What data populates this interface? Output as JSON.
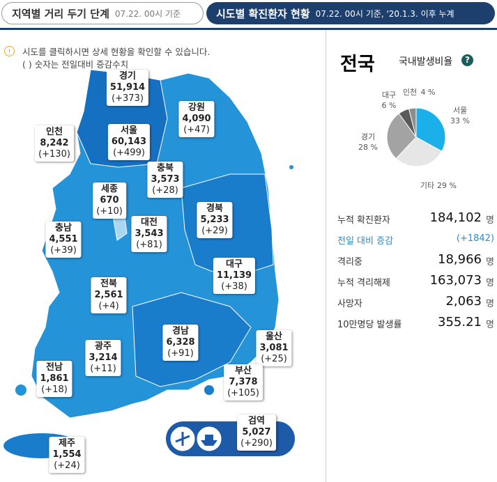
{
  "tabs": [
    {
      "title": "지역별 거리 두기 단계",
      "sub": "07.22. 00시 기준"
    },
    {
      "title": "시도별 확진환자 현황",
      "sub": "07.22. 00시 기준, '20.1.3. 이후 누계"
    }
  ],
  "notice": [
    "시도를 클릭하시면 상세 현황을 확인할 수 있습니다.",
    "( ) 숫자는 전일대비 증감수치"
  ],
  "regions": [
    {
      "name": "경기",
      "count": "51,914",
      "change": "(+373)"
    },
    {
      "name": "강원",
      "count": "4,090",
      "change": "(+47)"
    },
    {
      "name": "인천",
      "count": "8,242",
      "change": "(+130)"
    },
    {
      "name": "서울",
      "count": "60,143",
      "change": "(+499)"
    },
    {
      "name": "충북",
      "count": "3,573",
      "change": "(+28)"
    },
    {
      "name": "세종",
      "count": "670",
      "change": "(+10)"
    },
    {
      "name": "충남",
      "count": "4,551",
      "change": "(+39)"
    },
    {
      "name": "대전",
      "count": "3,543",
      "change": "(+81)"
    },
    {
      "name": "경북",
      "count": "5,233",
      "change": "(+29)"
    },
    {
      "name": "대구",
      "count": "11,139",
      "change": "(+38)"
    },
    {
      "name": "전북",
      "count": "2,561",
      "change": "(+4)"
    },
    {
      "name": "경남",
      "count": "6,328",
      "change": "(+91)"
    },
    {
      "name": "울산",
      "count": "3,081",
      "change": "(+25)"
    },
    {
      "name": "광주",
      "count": "3,214",
      "change": "(+11)"
    },
    {
      "name": "전남",
      "count": "1,861",
      "change": "(+18)"
    },
    {
      "name": "부산",
      "count": "7,378",
      "change": "(+105)"
    },
    {
      "name": "검역",
      "count": "5,027",
      "change": "(+290)"
    },
    {
      "name": "제주",
      "count": "1,554",
      "change": "(+24)"
    }
  ],
  "panel": {
    "title": "전국",
    "subtitle": "국내발생비율",
    "help": "?",
    "chart_data": {
      "type": "pie",
      "categories": [
        "서울",
        "기타",
        "경기",
        "대구",
        "인천"
      ],
      "values": [
        33,
        29,
        28,
        6,
        4
      ],
      "value_labels": [
        "33 %",
        "29 %",
        "28 %",
        "6 %",
        "4 %"
      ],
      "colors": [
        "#1bb0ea",
        "#e6e6e6",
        "#a3a3a3",
        "#5a5a5a",
        "#8c8c8c"
      ]
    },
    "stats": [
      {
        "label": "누적 확진환자",
        "value": "184,102",
        "unit": "명"
      },
      {
        "label": "전일 대비 증감",
        "value": "(+1842)"
      },
      {
        "label": "격리중",
        "value": "18,966",
        "unit": "명"
      },
      {
        "label": "누적 격리해제",
        "value": "163,073",
        "unit": "명"
      },
      {
        "label": "사망자",
        "value": "2,063",
        "unit": "명"
      },
      {
        "label": "10만명당 발생률",
        "value": "355.21",
        "unit": "명"
      }
    ]
  }
}
